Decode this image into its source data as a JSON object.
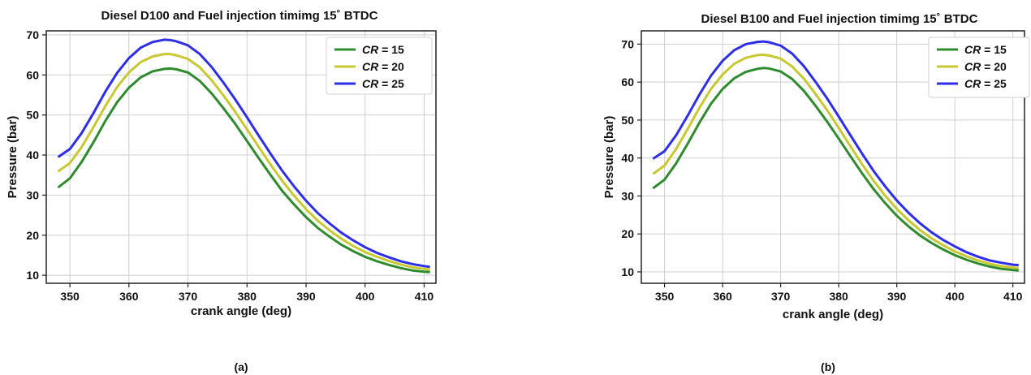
{
  "chart_data": [
    {
      "type": "line",
      "title": "Diesel D100 and Fuel injection timimg 15˚ BTDC",
      "caption": "(a)",
      "xlabel": "crank angle (deg)",
      "ylabel": "Pressure (bar)",
      "xlim": [
        346,
        412
      ],
      "ylim": [
        8,
        71
      ],
      "xticks": [
        350,
        360,
        370,
        380,
        390,
        400,
        410
      ],
      "yticks": [
        10,
        20,
        30,
        40,
        50,
        60,
        70
      ],
      "grid": true,
      "legend_position": "top-right",
      "x": [
        348,
        350,
        352,
        354,
        356,
        358,
        360,
        362,
        364,
        366,
        367,
        368,
        370,
        372,
        374,
        376,
        378,
        380,
        382,
        384,
        386,
        388,
        390,
        392,
        394,
        396,
        398,
        400,
        402,
        404,
        406,
        408,
        410,
        411
      ],
      "series": [
        {
          "name": "CR = 15",
          "label_prefix": "CR",
          "label_suffix": " = 15",
          "color": "#2e8b2e",
          "values": [
            31.9,
            34.2,
            38.3,
            43.2,
            48.5,
            53.2,
            56.8,
            59.4,
            60.9,
            61.5,
            61.6,
            61.4,
            60.6,
            58.5,
            55.4,
            51.7,
            47.8,
            43.5,
            39.2,
            35.0,
            31.0,
            27.6,
            24.5,
            21.8,
            19.6,
            17.6,
            16.0,
            14.6,
            13.5,
            12.6,
            11.8,
            11.2,
            10.9,
            10.8
          ]
        },
        {
          "name": "CR = 20",
          "label_prefix": "CR",
          "label_suffix": " = 20",
          "color": "#c8c832",
          "values": [
            35.9,
            38.0,
            42.0,
            47.0,
            52.2,
            57.0,
            60.6,
            63.2,
            64.6,
            65.2,
            65.2,
            64.9,
            64.0,
            61.9,
            58.7,
            54.9,
            50.8,
            46.4,
            42.0,
            37.6,
            33.5,
            29.8,
            26.5,
            23.6,
            21.2,
            19.1,
            17.3,
            15.8,
            14.6,
            13.6,
            12.7,
            12.0,
            11.6,
            11.4
          ]
        },
        {
          "name": "CR = 25",
          "label_prefix": "CR",
          "label_suffix": " = 25",
          "color": "#2e2ee8",
          "values": [
            39.5,
            41.5,
            45.5,
            50.5,
            55.8,
            60.5,
            64.2,
            66.8,
            68.2,
            68.8,
            68.7,
            68.4,
            67.4,
            65.2,
            62.0,
            58.1,
            53.9,
            49.4,
            44.8,
            40.3,
            36.0,
            32.1,
            28.6,
            25.5,
            22.9,
            20.6,
            18.7,
            17.0,
            15.6,
            14.5,
            13.5,
            12.8,
            12.3,
            12.1
          ]
        }
      ]
    },
    {
      "type": "line",
      "title": "Diesel B100 and Fuel injection timimg 15˚ BTDC",
      "caption": "(b)",
      "xlabel": "crank angle (deg)",
      "ylabel": "Pressure (bar)",
      "xlim": [
        346,
        412
      ],
      "ylim": [
        7,
        73.5
      ],
      "xticks": [
        350,
        360,
        370,
        380,
        390,
        400,
        410
      ],
      "yticks": [
        10,
        20,
        30,
        40,
        50,
        60,
        70
      ],
      "grid": true,
      "legend_position": "top-right",
      "x": [
        348,
        350,
        352,
        354,
        356,
        358,
        360,
        362,
        364,
        366,
        367,
        368,
        370,
        372,
        374,
        376,
        378,
        380,
        382,
        384,
        386,
        388,
        390,
        392,
        394,
        396,
        398,
        400,
        402,
        404,
        406,
        408,
        410,
        411
      ],
      "series": [
        {
          "name": "CR = 15",
          "label_prefix": "CR",
          "label_suffix": " = 15",
          "color": "#2e8b2e",
          "values": [
            32.0,
            34.3,
            38.6,
            43.8,
            49.3,
            54.3,
            58.2,
            61.0,
            62.7,
            63.5,
            63.7,
            63.6,
            62.8,
            60.8,
            57.7,
            53.8,
            49.6,
            45.1,
            40.5,
            36.0,
            31.8,
            28.1,
            24.8,
            22.0,
            19.6,
            17.6,
            15.9,
            14.4,
            13.2,
            12.2,
            11.4,
            10.8,
            10.5,
            10.4
          ]
        },
        {
          "name": "CR = 20",
          "label_prefix": "CR",
          "label_suffix": " = 20",
          "color": "#c8c832",
          "values": [
            35.8,
            38.0,
            42.4,
            47.7,
            53.2,
            58.2,
            62.0,
            64.8,
            66.4,
            67.1,
            67.2,
            67.0,
            66.2,
            64.1,
            60.9,
            56.9,
            52.6,
            47.9,
            43.1,
            38.4,
            34.0,
            30.1,
            26.6,
            23.6,
            21.0,
            18.8,
            17.0,
            15.4,
            14.1,
            13.0,
            12.1,
            11.5,
            11.1,
            11.0
          ]
        },
        {
          "name": "CR = 25",
          "label_prefix": "CR",
          "label_suffix": " = 25",
          "color": "#2e2ee8",
          "values": [
            39.8,
            41.8,
            46.0,
            51.2,
            56.7,
            61.7,
            65.6,
            68.4,
            70.0,
            70.6,
            70.7,
            70.5,
            69.6,
            67.5,
            64.2,
            60.1,
            55.7,
            50.9,
            46.0,
            41.2,
            36.6,
            32.5,
            28.8,
            25.6,
            22.8,
            20.4,
            18.4,
            16.7,
            15.2,
            14.0,
            13.0,
            12.4,
            11.9,
            11.8
          ]
        }
      ]
    }
  ]
}
